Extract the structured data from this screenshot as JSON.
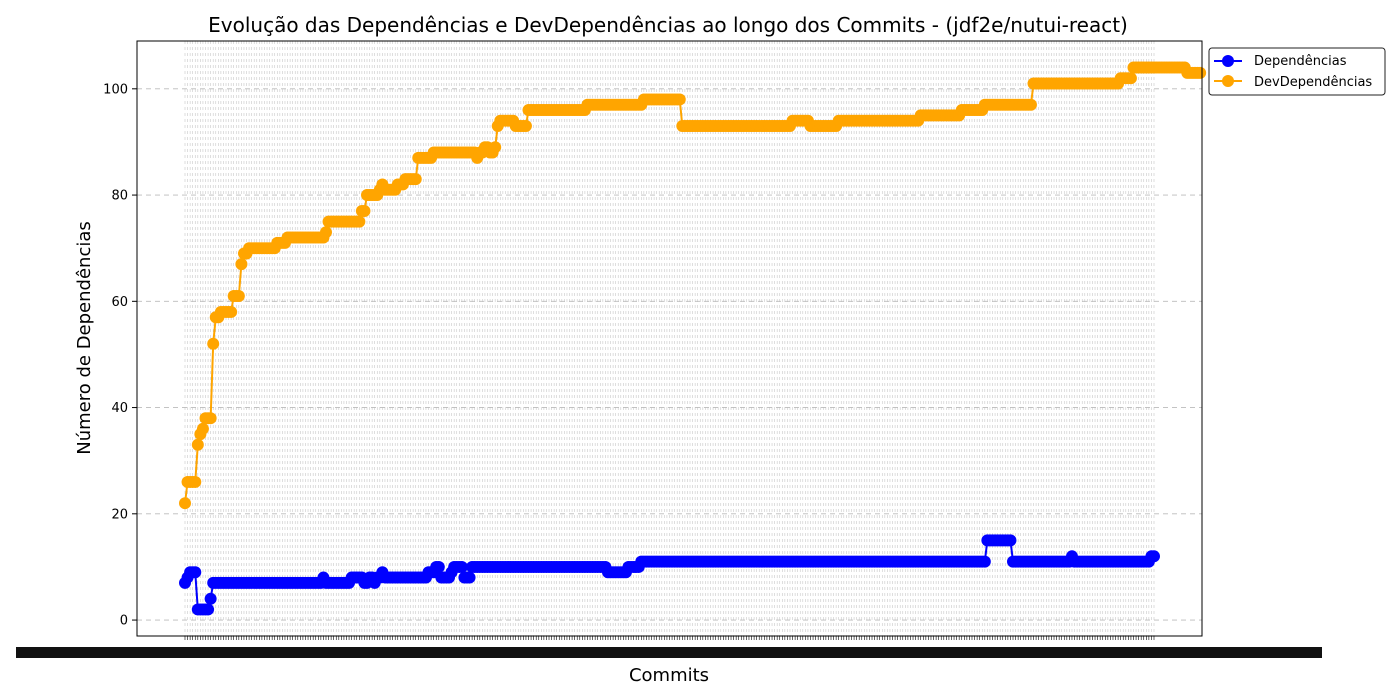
{
  "chart_data": {
    "type": "line",
    "title": "Evolução das Dependências e DevDependências ao longo dos Commits - (jdf2e/nutui-react)",
    "xlabel": "Commits",
    "ylabel": "Número de Dependências",
    "ylim": [
      -3,
      109
    ],
    "yticks": [
      0,
      20,
      40,
      60,
      80,
      100
    ],
    "grid": true,
    "legend_position": "upper-right-outside",
    "x_tick_labels": "overlapping commit hash labels (illegible)",
    "series": [
      {
        "name": "Dependências",
        "color": "#0000ff",
        "values": [
          7,
          8,
          9,
          9,
          9,
          2,
          2,
          2,
          2,
          2,
          4,
          7,
          7,
          7,
          7,
          7,
          7,
          7,
          7,
          7,
          7,
          7,
          7,
          7,
          7,
          7,
          7,
          7,
          7,
          7,
          7,
          7,
          7,
          7,
          7,
          7,
          7,
          7,
          7,
          7,
          7,
          7,
          7,
          7,
          7,
          7,
          7,
          7,
          7,
          7,
          7,
          7,
          7,
          7,
          8,
          7,
          7,
          7,
          7,
          7,
          7,
          7,
          7,
          7,
          7,
          8,
          8,
          8,
          8,
          8,
          7,
          7,
          8,
          8,
          7,
          8,
          8,
          9,
          8,
          8,
          8,
          8,
          8,
          8,
          8,
          8,
          8,
          8,
          8,
          8,
          8,
          8,
          8,
          8,
          8,
          9,
          9,
          9,
          10,
          10,
          8,
          8,
          8,
          8,
          9,
          10,
          10,
          10,
          10,
          8,
          8,
          8,
          10,
          10,
          10,
          10,
          10,
          10,
          10,
          10,
          10,
          10,
          10,
          10,
          10,
          10,
          10,
          10,
          10,
          10,
          10,
          10,
          10,
          10,
          10,
          10,
          10,
          10,
          10,
          10,
          10,
          10,
          10,
          10,
          10,
          10,
          10,
          10,
          10,
          10,
          10,
          10,
          10,
          10,
          10,
          10,
          10,
          10,
          10,
          10,
          10,
          10,
          10,
          10,
          10,
          9,
          9,
          9,
          9,
          9,
          9,
          9,
          9,
          10,
          10,
          10,
          10,
          10,
          11,
          11,
          11,
          11,
          11,
          11,
          11,
          11,
          11,
          11,
          11,
          11,
          11,
          11,
          11,
          11,
          11,
          11,
          11,
          11,
          11,
          11,
          11,
          11,
          11,
          11,
          11,
          11,
          11,
          11,
          11,
          11,
          11,
          11,
          11,
          11,
          11,
          11,
          11,
          11,
          11,
          11,
          11,
          11,
          11,
          11,
          11,
          11,
          11,
          11,
          11,
          11,
          11,
          11,
          11,
          11,
          11,
          11,
          11,
          11,
          11,
          11,
          11,
          11,
          11,
          11,
          11,
          11,
          11,
          11,
          11,
          11,
          11,
          11,
          11,
          11,
          11,
          11,
          11,
          11,
          11,
          11,
          11,
          11,
          11,
          11,
          11,
          11,
          11,
          11,
          11,
          11,
          11,
          11,
          11,
          11,
          11,
          11,
          11,
          11,
          11,
          11,
          11,
          11,
          11,
          11,
          11,
          11,
          11,
          11,
          11,
          11,
          11,
          11,
          11,
          11,
          11,
          11,
          11,
          11,
          11,
          11,
          11,
          11,
          11,
          11,
          11,
          11,
          11,
          11,
          11,
          11,
          11,
          11,
          11,
          15,
          15,
          15,
          15,
          15,
          15,
          15,
          15,
          15,
          15,
          11,
          11,
          11,
          11,
          11,
          11,
          11,
          11,
          11,
          11,
          11,
          11,
          11,
          11,
          11,
          11,
          11,
          11,
          11,
          11,
          11,
          11,
          11,
          12,
          11,
          11,
          11,
          11,
          11,
          11,
          11,
          11,
          11,
          11,
          11,
          11,
          11,
          11,
          11,
          11,
          11,
          11,
          11,
          11,
          11,
          11,
          11,
          11,
          11,
          11,
          11,
          11,
          11,
          11,
          12,
          12
        ]
      },
      {
        "name": "DevDependências",
        "color": "#ffa500",
        "values": [
          22,
          26,
          26,
          26,
          26,
          33,
          35,
          36,
          38,
          38,
          38,
          52,
          57,
          57,
          58,
          58,
          58,
          58,
          58,
          61,
          61,
          61,
          67,
          69,
          69,
          70,
          70,
          70,
          70,
          70,
          70,
          70,
          70,
          70,
          70,
          70,
          71,
          71,
          71,
          71,
          72,
          72,
          72,
          72,
          72,
          72,
          72,
          72,
          72,
          72,
          72,
          72,
          72,
          72,
          72,
          73,
          75,
          75,
          75,
          75,
          75,
          75,
          75,
          75,
          75,
          75,
          75,
          75,
          75,
          77,
          77,
          80,
          80,
          80,
          80,
          80,
          81,
          82,
          81,
          81,
          81,
          81,
          81,
          82,
          82,
          82,
          83,
          83,
          83,
          83,
          83,
          87,
          87,
          87,
          87,
          87,
          87,
          88,
          88,
          88,
          88,
          88,
          88,
          88,
          88,
          88,
          88,
          88,
          88,
          88,
          88,
          88,
          88,
          88,
          87,
          88,
          88,
          89,
          89,
          88,
          88,
          89,
          93,
          94,
          94,
          94,
          94,
          94,
          94,
          93,
          93,
          93,
          93,
          93,
          96,
          96,
          96,
          96,
          96,
          96,
          96,
          96,
          96,
          96,
          96,
          96,
          96,
          96,
          96,
          96,
          96,
          96,
          96,
          96,
          96,
          96,
          96,
          97,
          97,
          97,
          97,
          97,
          97,
          97,
          97,
          97,
          97,
          97,
          97,
          97,
          97,
          97,
          97,
          97,
          97,
          97,
          97,
          97,
          97,
          98,
          98,
          98,
          98,
          98,
          98,
          98,
          98,
          98,
          98,
          98,
          98,
          98,
          98,
          98,
          93,
          93,
          93,
          93,
          93,
          93,
          93,
          93,
          93,
          93,
          93,
          93,
          93,
          93,
          93,
          93,
          93,
          93,
          93,
          93,
          93,
          93,
          93,
          93,
          93,
          93,
          93,
          93,
          93,
          93,
          93,
          93,
          93,
          93,
          93,
          93,
          93,
          93,
          93,
          93,
          93,
          93,
          93,
          94,
          94,
          94,
          94,
          94,
          94,
          94,
          93,
          93,
          93,
          93,
          93,
          93,
          93,
          93,
          93,
          93,
          93,
          94,
          94,
          94,
          94,
          94,
          94,
          94,
          94,
          94,
          94,
          94,
          94,
          94,
          94,
          94,
          94,
          94,
          94,
          94,
          94,
          94,
          94,
          94,
          94,
          94,
          94,
          94,
          94,
          94,
          94,
          94,
          94,
          95,
          95,
          95,
          95,
          95,
          95,
          95,
          95,
          95,
          95,
          95,
          95,
          95,
          95,
          95,
          95,
          96,
          96,
          96,
          96,
          96,
          96,
          96,
          96,
          96,
          97,
          97,
          97,
          97,
          97,
          97,
          97,
          97,
          97,
          97,
          97,
          97,
          97,
          97,
          97,
          97,
          97,
          97,
          97,
          101,
          101,
          101,
          101,
          101,
          101,
          101,
          101,
          101,
          101,
          101,
          101,
          101,
          101,
          101,
          101,
          101,
          101,
          101,
          101,
          101,
          101,
          101,
          101,
          101,
          101,
          101,
          101,
          101,
          101,
          101,
          101,
          101,
          101,
          102,
          102,
          102,
          102,
          102,
          104,
          104,
          104,
          104,
          104,
          104,
          104,
          104,
          104,
          104,
          104,
          104,
          104,
          104,
          104,
          104,
          104,
          104,
          104,
          104,
          104,
          103,
          103,
          103,
          103,
          103,
          103
        ]
      }
    ]
  }
}
